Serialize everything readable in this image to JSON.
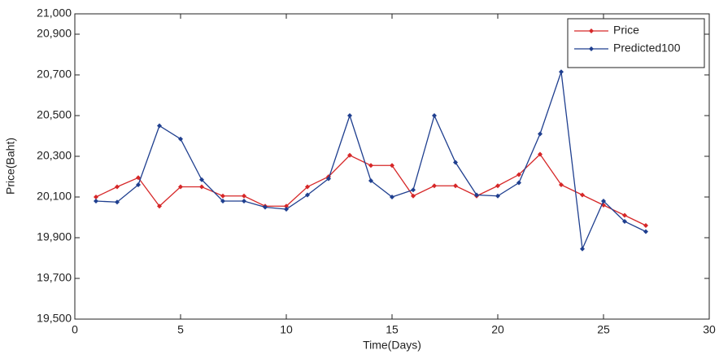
{
  "chart_data": {
    "type": "line",
    "x_label": "Time(Days)",
    "y_label": "Price(Baht)",
    "x": [
      1,
      2,
      3,
      4,
      5,
      6,
      7,
      8,
      9,
      10,
      11,
      12,
      13,
      14,
      15,
      16,
      17,
      18,
      19,
      20,
      21,
      22,
      23,
      24,
      25,
      26,
      27
    ],
    "series": [
      {
        "name": "Price",
        "color": "#d62728",
        "values": [
          20100,
          20150,
          20195,
          20055,
          20150,
          20150,
          20105,
          20105,
          20055,
          20055,
          20150,
          20200,
          20305,
          20255,
          20255,
          20105,
          20155,
          20155,
          20105,
          20155,
          20210,
          20310,
          20160,
          20110,
          20060,
          20010,
          19960
        ]
      },
      {
        "name": "Predicted100",
        "color": "#1f3f8f",
        "values": [
          20080,
          20075,
          20160,
          20450,
          20385,
          20185,
          20080,
          20080,
          20050,
          20040,
          20110,
          20190,
          20500,
          20180,
          20100,
          20135,
          20500,
          20270,
          20110,
          20105,
          20170,
          20410,
          20715,
          19845,
          20080,
          19980,
          19930
        ]
      }
    ],
    "xlim": [
      0,
      30
    ],
    "xticks": [
      0,
      5,
      10,
      15,
      20,
      25,
      30
    ],
    "ylim": [
      19500,
      21000
    ],
    "yticks": [
      {
        "value": 19500,
        "label": "19,500"
      },
      {
        "value": 19700,
        "label": "19,700"
      },
      {
        "value": 19900,
        "label": "19,900"
      },
      {
        "value": 20100,
        "label": "20,100"
      },
      {
        "value": 20300,
        "label": "20,300"
      },
      {
        "value": 20500,
        "label": "20,500"
      },
      {
        "value": 20700,
        "label": "20,700"
      },
      {
        "value": 20900,
        "label": "20,900"
      },
      {
        "value": 21000,
        "label": "21,000"
      }
    ],
    "grid": false,
    "legend": "upper right"
  }
}
